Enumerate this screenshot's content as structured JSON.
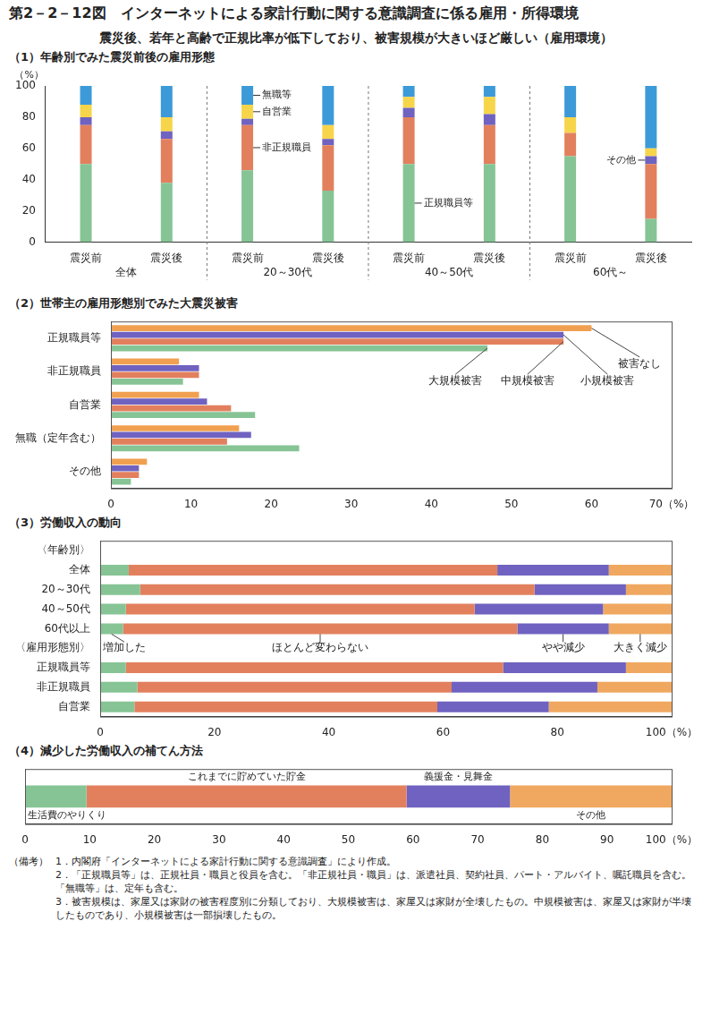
{
  "figure_title": "第2－2－12図　インターネットによる家計行動に関する意識調査に係る雇用・所得環境",
  "subtitle": "震災後、若年と高齢で正規比率が低下しており、被害規模が大きいほど厳しい（雇用環境）",
  "chart_data": [
    {
      "type": "bar",
      "title": "（1）年齢別でみた震災前後の雇用形態",
      "stacked": true,
      "grid": false,
      "ylabel": "（%）",
      "categories": [
        "震災前",
        "震災後",
        "震災前",
        "震災後",
        "震災前",
        "震災後",
        "震災前",
        "震災後"
      ],
      "groups": [
        "全体",
        "20～30代",
        "40～50代",
        "60代～"
      ],
      "series": [
        {
          "name": "正規職員等",
          "color": "#86c495",
          "values": [
            50,
            38,
            46,
            33,
            50,
            50,
            55,
            15
          ]
        },
        {
          "name": "非正規職員",
          "color": "#e2805e",
          "values": [
            25,
            28,
            29,
            29,
            30,
            25,
            15,
            35
          ]
        },
        {
          "name": "その他",
          "color": "#6f62c0",
          "values": [
            5,
            5,
            4,
            4,
            6,
            7,
            0,
            5
          ]
        },
        {
          "name": "自営業",
          "color": "#f7d54a",
          "values": [
            8,
            9,
            9,
            9,
            7,
            11,
            10,
            5
          ]
        },
        {
          "name": "無職等",
          "color": "#3d9ad8",
          "values": [
            12,
            20,
            12,
            25,
            7,
            7,
            20,
            40
          ]
        }
      ],
      "ylim": [
        0,
        100
      ],
      "yticks": [
        0,
        20,
        40,
        60,
        80,
        100
      ]
    },
    {
      "type": "bar",
      "title": "（2）世帯主の雇用形態別でみた大震災被害",
      "orientation": "horizontal",
      "grid": false,
      "categories": [
        "正規職員等",
        "非正規職員",
        "自営業",
        "無職（定年含む）",
        "その他"
      ],
      "series": [
        {
          "name": "被害なし",
          "color": "#f0a050",
          "values": [
            60,
            8.5,
            11,
            16,
            4.5
          ]
        },
        {
          "name": "小規模被害",
          "color": "#6f62c0",
          "values": [
            56.5,
            11,
            12,
            17.5,
            3.5
          ]
        },
        {
          "name": "中規模被害",
          "color": "#e2805e",
          "values": [
            56.5,
            11,
            15,
            14.5,
            3.5
          ]
        },
        {
          "name": "大規模被害",
          "color": "#86c495",
          "values": [
            47,
            9,
            18,
            23.5,
            2.5
          ]
        }
      ],
      "xlim": [
        0,
        70
      ],
      "xticks": [
        0,
        10,
        20,
        30,
        40,
        50,
        60,
        {
          "value": 70,
          "label": "70（%）"
        }
      ]
    },
    {
      "type": "bar",
      "title": "（3）労働収入の動向",
      "orientation": "horizontal",
      "stacked": true,
      "grid": false,
      "categories": [
        "〈年齢別〉",
        "全体",
        "20～30代",
        "40～50代",
        "60代以上",
        "〈雇用形態別〉",
        "正規職員等",
        "非正規職員",
        "自営業"
      ],
      "series": [
        {
          "name": "増加した",
          "color": "#86c495",
          "values": [
            null,
            5,
            7,
            4.5,
            4,
            null,
            4.5,
            6.5,
            6
          ]
        },
        {
          "name": "ほとんど変わらない",
          "color": "#e2805e",
          "values": [
            null,
            64.5,
            69,
            61,
            69,
            null,
            66,
            55,
            53
          ]
        },
        {
          "name": "やや減少",
          "color": "#6f62c0",
          "values": [
            null,
            19.5,
            16,
            22.5,
            16,
            null,
            21.5,
            25.5,
            19.5
          ]
        },
        {
          "name": "大きく減少",
          "color": "#f0a860",
          "values": [
            null,
            11,
            8,
            12,
            11,
            null,
            8,
            13,
            21.5
          ]
        }
      ],
      "xlim": [
        0,
        100
      ],
      "xticks": [
        0,
        20,
        40,
        60,
        80,
        {
          "value": 100,
          "label": "100（%）"
        }
      ]
    },
    {
      "type": "bar",
      "title": "（4）減少した労働収入の補てん方法",
      "orientation": "horizontal",
      "stacked": true,
      "grid": false,
      "categories": [
        null
      ],
      "series": [
        {
          "name": "生活費のやりくり",
          "color": "#86c495",
          "values": [
            9.5
          ]
        },
        {
          "name": "これまでに貯めていた貯金",
          "color": "#e2805e",
          "values": [
            49.5
          ]
        },
        {
          "name": "義援金・見舞金",
          "color": "#6f62c0",
          "values": [
            16
          ]
        },
        {
          "name": "その他",
          "color": "#f0a860",
          "values": [
            25
          ]
        }
      ],
      "xlim": [
        0,
        100
      ],
      "xticks": [
        0,
        10,
        20,
        30,
        40,
        50,
        60,
        70,
        80,
        90,
        {
          "value": 100,
          "label": "100（%）"
        }
      ]
    }
  ],
  "notes": {
    "label": "（備考）",
    "items": [
      "1．内閣府「インターネットによる家計行動に関する意識調査」により作成。",
      "2．「正規職員等」は、正規社員・職員と役員を含む。「非正規社員・職員」は、派遣社員、契約社員、パート・アルバイト、嘱託職員を含む。「無職等」は、定年も含む。",
      "3．被害規模は、家屋又は家財の被害程度別に分類しており、大規模被害は、家屋又は家財が全壊したもの。中規模被害は、家屋又は家財が半壊したものであり、小規模被害は一部損壊したもの。"
    ]
  }
}
